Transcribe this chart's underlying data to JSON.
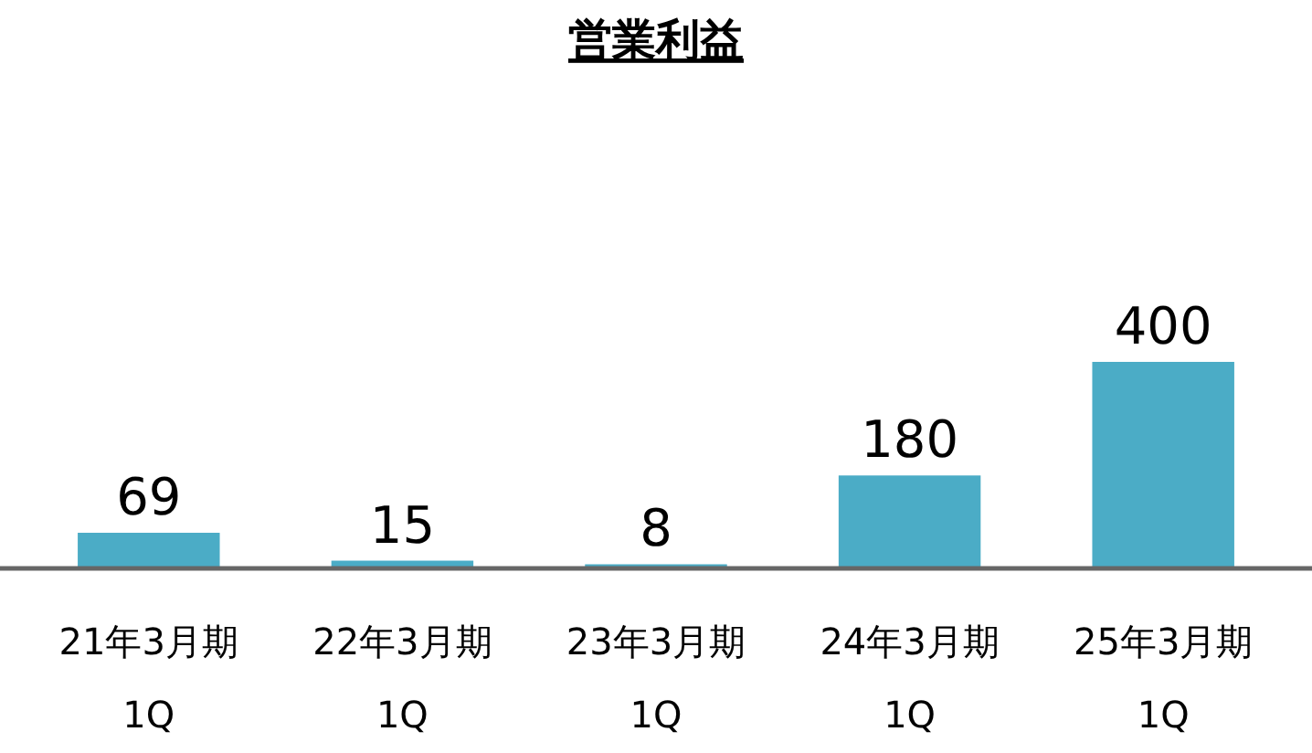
{
  "chart_data": {
    "type": "bar",
    "title": "営業利益",
    "categories": [
      "21年3月期\n1Q",
      "22年3月期\n1Q",
      "23年3月期\n1Q",
      "24年3月期\n1Q",
      "25年3月期\n1Q"
    ],
    "values": [
      69,
      15,
      8,
      180,
      400
    ],
    "color": "#4bacc6",
    "data_labels": true
  }
}
